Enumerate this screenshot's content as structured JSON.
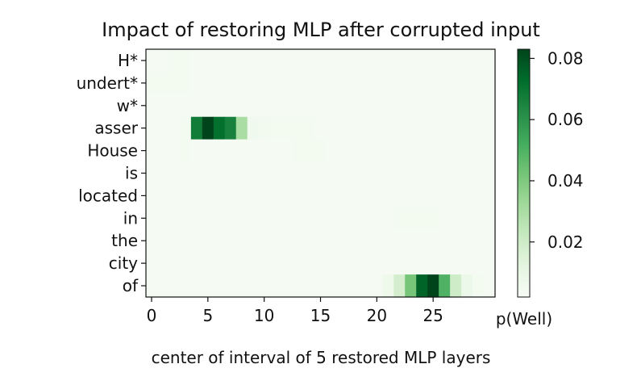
{
  "chart_data": {
    "type": "heatmap",
    "title": "Impact of restoring MLP after corrupted input",
    "xlabel": "center of interval of 5 restored MLP layers",
    "colorbar_label": "p(Well)",
    "colormap": [
      "#f7fcf5",
      "#e5f5e0",
      "#c7e9c0",
      "#a1d99b",
      "#74c476",
      "#41ab5d",
      "#238b45",
      "#006d2c",
      "#00441b"
    ],
    "rows": [
      "H*",
      "undert*",
      "w*",
      "asser",
      "House",
      "is",
      "located",
      "in",
      "the",
      "city",
      "of"
    ],
    "x_ticks": [
      0,
      5,
      10,
      15,
      20,
      25
    ],
    "num_cols": 31,
    "vmin": 0.002,
    "vmax": 0.083,
    "colorbar_ticks": [
      0.02,
      0.04,
      0.06,
      0.08
    ],
    "values": [
      [
        0.003,
        0.003,
        0.004,
        0.004,
        0.003,
        0.003,
        0.003,
        0.003,
        0.003,
        0.003,
        0.003,
        0.003,
        0.003,
        0.003,
        0.003,
        0.003,
        0.003,
        0.003,
        0.003,
        0.003,
        0.003,
        0.003,
        0.003,
        0.003,
        0.003,
        0.003,
        0.003,
        0.003,
        0.003,
        0.003,
        0.003
      ],
      [
        0.004,
        0.004,
        0.004,
        0.004,
        0.003,
        0.003,
        0.003,
        0.003,
        0.003,
        0.003,
        0.003,
        0.003,
        0.003,
        0.003,
        0.003,
        0.003,
        0.003,
        0.003,
        0.003,
        0.003,
        0.003,
        0.003,
        0.003,
        0.003,
        0.003,
        0.003,
        0.003,
        0.003,
        0.003,
        0.003,
        0.003
      ],
      [
        0.003,
        0.003,
        0.003,
        0.003,
        0.003,
        0.003,
        0.003,
        0.003,
        0.003,
        0.003,
        0.003,
        0.003,
        0.003,
        0.003,
        0.003,
        0.003,
        0.003,
        0.003,
        0.003,
        0.003,
        0.003,
        0.003,
        0.003,
        0.003,
        0.003,
        0.003,
        0.003,
        0.003,
        0.003,
        0.003,
        0.003
      ],
      [
        0.003,
        0.003,
        0.003,
        0.004,
        0.068,
        0.083,
        0.072,
        0.066,
        0.03,
        0.006,
        0.005,
        0.004,
        0.004,
        0.004,
        0.004,
        0.003,
        0.003,
        0.003,
        0.003,
        0.003,
        0.003,
        0.003,
        0.003,
        0.003,
        0.003,
        0.003,
        0.003,
        0.003,
        0.003,
        0.003,
        0.003
      ],
      [
        0.003,
        0.003,
        0.003,
        0.004,
        0.003,
        0.003,
        0.003,
        0.003,
        0.003,
        0.003,
        0.003,
        0.003,
        0.003,
        0.004,
        0.004,
        0.004,
        0.003,
        0.003,
        0.003,
        0.003,
        0.003,
        0.003,
        0.003,
        0.003,
        0.003,
        0.003,
        0.003,
        0.003,
        0.003,
        0.003,
        0.003
      ],
      [
        0.003,
        0.003,
        0.003,
        0.003,
        0.003,
        0.003,
        0.003,
        0.003,
        0.003,
        0.003,
        0.003,
        0.003,
        0.003,
        0.003,
        0.003,
        0.003,
        0.003,
        0.003,
        0.003,
        0.003,
        0.003,
        0.003,
        0.003,
        0.003,
        0.003,
        0.003,
        0.003,
        0.003,
        0.003,
        0.003,
        0.003
      ],
      [
        0.003,
        0.003,
        0.003,
        0.003,
        0.003,
        0.003,
        0.003,
        0.003,
        0.003,
        0.003,
        0.003,
        0.003,
        0.003,
        0.003,
        0.003,
        0.003,
        0.003,
        0.003,
        0.003,
        0.003,
        0.003,
        0.003,
        0.003,
        0.003,
        0.003,
        0.003,
        0.003,
        0.003,
        0.003,
        0.003,
        0.003
      ],
      [
        0.003,
        0.003,
        0.003,
        0.003,
        0.003,
        0.003,
        0.003,
        0.003,
        0.003,
        0.003,
        0.003,
        0.003,
        0.003,
        0.003,
        0.003,
        0.003,
        0.003,
        0.003,
        0.003,
        0.003,
        0.003,
        0.003,
        0.004,
        0.004,
        0.004,
        0.004,
        0.003,
        0.003,
        0.003,
        0.003,
        0.003
      ],
      [
        0.003,
        0.003,
        0.003,
        0.003,
        0.003,
        0.003,
        0.003,
        0.003,
        0.003,
        0.003,
        0.003,
        0.003,
        0.003,
        0.003,
        0.003,
        0.003,
        0.003,
        0.003,
        0.003,
        0.003,
        0.003,
        0.003,
        0.003,
        0.003,
        0.003,
        0.003,
        0.003,
        0.003,
        0.003,
        0.003,
        0.003
      ],
      [
        0.003,
        0.003,
        0.003,
        0.003,
        0.003,
        0.003,
        0.003,
        0.003,
        0.003,
        0.003,
        0.003,
        0.003,
        0.003,
        0.003,
        0.003,
        0.003,
        0.003,
        0.003,
        0.003,
        0.003,
        0.003,
        0.003,
        0.003,
        0.003,
        0.003,
        0.003,
        0.003,
        0.003,
        0.003,
        0.003,
        0.003
      ],
      [
        0.003,
        0.003,
        0.003,
        0.003,
        0.003,
        0.003,
        0.003,
        0.003,
        0.003,
        0.003,
        0.003,
        0.003,
        0.003,
        0.003,
        0.003,
        0.003,
        0.003,
        0.003,
        0.003,
        0.003,
        0.003,
        0.007,
        0.018,
        0.042,
        0.075,
        0.083,
        0.05,
        0.02,
        0.008,
        0.004,
        0.003
      ]
    ]
  }
}
